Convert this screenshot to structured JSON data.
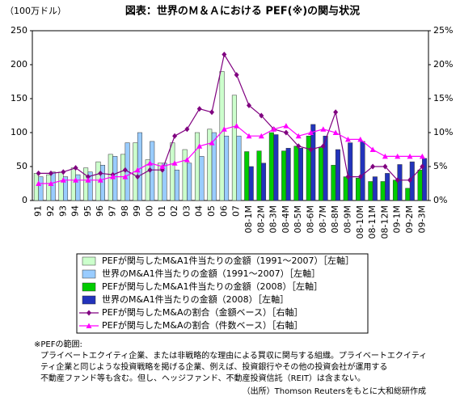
{
  "chart_data": {
    "type": "bar",
    "title": "図表：世界のＭ＆Ａにおける PEF(※)の関与状況",
    "y_label": "（100万ドル）",
    "categories": [
      "91",
      "92",
      "93",
      "94",
      "95",
      "96",
      "97",
      "98",
      "99",
      "00",
      "01",
      "02",
      "03",
      "04",
      "05",
      "06",
      "07",
      "08-1M",
      "08-2M",
      "08-3M",
      "08-4M",
      "08-5M",
      "08-6M",
      "08-7M",
      "08-8M",
      "08-9M",
      "08-10M",
      "08-11M",
      "08-12M",
      "09-1M",
      "09-2M",
      "09-3M"
    ],
    "ylim": [
      0,
      250
    ],
    "yticks": [
      0,
      50,
      100,
      150,
      200,
      250
    ],
    "y2lim": [
      0,
      25
    ],
    "y2ticks": [
      {
        "value": 0,
        "label": "0%"
      },
      {
        "value": 5,
        "label": "5%"
      },
      {
        "value": 10,
        "label": "10%"
      },
      {
        "value": 15,
        "label": "15%"
      },
      {
        "value": 20,
        "label": "20%"
      },
      {
        "value": 25,
        "label": "25%"
      }
    ],
    "series": [
      {
        "name": "PEFが関与したM&A1件当たりの金額（1991～2007）［左軸］",
        "type": "bar",
        "color": "#ccffcc",
        "values": [
          40,
          38,
          42,
          48,
          48,
          57,
          68,
          68,
          85,
          60,
          55,
          85,
          75,
          100,
          105,
          190,
          155,
          null,
          null,
          null,
          null,
          null,
          null,
          null,
          null,
          null,
          null,
          null,
          null,
          null,
          null,
          null
        ]
      },
      {
        "name": "世界のM&A1件当たりの金額（1991～2007）［左軸］",
        "type": "bar",
        "color": "#99ccff",
        "values": [
          35,
          42,
          35,
          38,
          42,
          52,
          65,
          85,
          100,
          87,
          55,
          45,
          55,
          65,
          100,
          95,
          95,
          null,
          null,
          null,
          null,
          null,
          null,
          null,
          null,
          null,
          null,
          null,
          null,
          null,
          null,
          null
        ]
      },
      {
        "name": "PEFが関与したM&A1件当たりの金額（2008）［左軸］",
        "type": "bar",
        "color": "#00cc00",
        "values": [
          null,
          null,
          null,
          null,
          null,
          null,
          null,
          null,
          null,
          null,
          null,
          null,
          null,
          null,
          null,
          null,
          null,
          72,
          73,
          100,
          73,
          80,
          95,
          78,
          52,
          35,
          33,
          28,
          28,
          30,
          18,
          45
        ]
      },
      {
        "name": "世界のM&A1件当たりの金額（2008）［左軸］",
        "type": "bar",
        "color": "#2233bb",
        "values": [
          null,
          null,
          null,
          null,
          null,
          null,
          null,
          null,
          null,
          null,
          null,
          null,
          null,
          null,
          null,
          null,
          null,
          50,
          55,
          97,
          77,
          77,
          112,
          95,
          75,
          85,
          87,
          35,
          40,
          53,
          57,
          62
        ]
      },
      {
        "name": "PEFが関与したM&Aの割合（金額ベース）［右軸］",
        "type": "line",
        "axis": "y2",
        "color": "#800080",
        "marker": "diamond",
        "values": [
          4,
          4,
          4.2,
          4.8,
          3.5,
          4,
          3.8,
          4.5,
          3.5,
          4.5,
          4.5,
          9.5,
          10.5,
          13.5,
          13,
          21.5,
          18.5,
          14,
          12.5,
          10.5,
          10,
          8,
          7.5,
          8,
          13,
          3.5,
          3.5,
          5,
          5,
          3,
          3,
          5
        ]
      },
      {
        "name": "PEFが関与したM&Aの割合（件数ベース）［右軸］",
        "type": "line",
        "axis": "y2",
        "color": "#ff00ff",
        "marker": "triangle",
        "values": [
          2.5,
          2.5,
          3,
          3,
          3,
          3,
          3.5,
          3.5,
          4.5,
          5.5,
          5,
          5.5,
          6,
          8,
          8.5,
          10.5,
          11,
          9.5,
          9.5,
          10.5,
          11,
          9.5,
          10,
          10.5,
          10,
          9,
          9,
          7.5,
          6.5,
          6.5,
          6.5,
          6.5
        ]
      }
    ],
    "notes": [
      "※PEFの範囲:",
      "プライベートエクイティ企業、または非戦略的な理由による買収に関与する組織。プライベートエクイティ",
      "ティ企業と同じような投資戦略を掲げる企業、例えば、投資銀行やその他の投資会社が運用する",
      "不動産ファンド等も含む。但し、ヘッジファンド、不動産投資信託（REIT）は含まない。"
    ],
    "source": "（出所）Thomson Reutersをもとに大和総研作成"
  }
}
